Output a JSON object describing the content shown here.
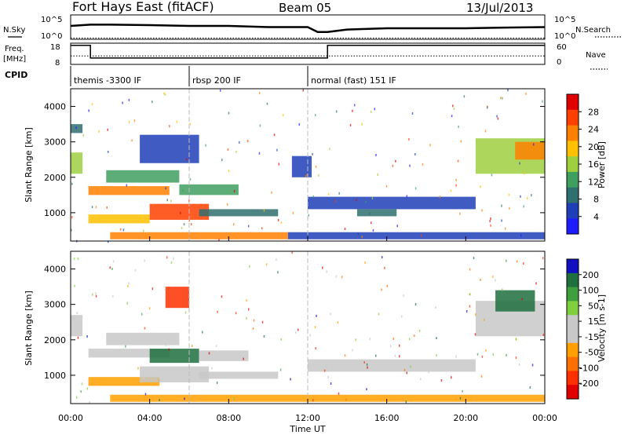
{
  "header": {
    "station": "Fort Hays East (fitACF)",
    "beam": "Beam 05",
    "date": "13/Jul/2013"
  },
  "panels": {
    "nsky_label": "N.Sky",
    "nsky_ticks": [
      "10^5",
      "10^0"
    ],
    "nsearch_label": "N.Search",
    "nsearch_ticks": [
      "10^5",
      "10^0"
    ],
    "freq_label": [
      "Freq.",
      "[MHz]"
    ],
    "freq_ticks": [
      "18",
      "8"
    ],
    "nave_label": "Nave",
    "nave_ticks": [
      "60",
      "0"
    ],
    "cpid_label": "CPID",
    "cpid_segments": [
      {
        "label": "themis -3300 IF",
        "start": 0.0,
        "end": 6.0
      },
      {
        "label": "rbsp 200 IF",
        "start": 6.0,
        "end": 12.0
      },
      {
        "label": "normal (fast) 151 IF",
        "start": 12.0,
        "end": 24.0
      }
    ]
  },
  "colors": {
    "power_scale": [
      "#1c1cff",
      "#1f3fb8",
      "#2f6f6f",
      "#3f9f5f",
      "#9fcf3f",
      "#ffc000",
      "#ff8000",
      "#ff4000",
      "#e00000"
    ],
    "velocity_scale": [
      "#1010c0",
      "#1f6f3f",
      "#3f9f3f",
      "#7fcf3f",
      "#c8c8c8",
      "#c8c8c8",
      "#ffa000",
      "#ff7000",
      "#ff3000",
      "#e00000"
    ]
  },
  "chart_data": [
    {
      "type": "heatmap",
      "title": "Power",
      "xlabel": "",
      "ylabel": "Slant Range [km]",
      "xlim": [
        0,
        24
      ],
      "ylim": [
        200,
        4500
      ],
      "yticks": [
        "1000",
        "2000",
        "3000",
        "4000"
      ],
      "colorbar": {
        "label": "Power [dB]",
        "ticks": [
          "4",
          "8",
          "12",
          "16",
          "20",
          "24",
          "28"
        ],
        "range": [
          0,
          30
        ]
      },
      "regions": [
        {
          "x": [
            0.0,
            0.6
          ],
          "y": [
            2100,
            2700
          ],
          "value": 14
        },
        {
          "x": [
            0.0,
            0.6
          ],
          "y": [
            3250,
            3500
          ],
          "value": 7
        },
        {
          "x": [
            0.9,
            5.0
          ],
          "y": [
            1500,
            1750
          ],
          "value": 22
        },
        {
          "x": [
            1.8,
            5.5
          ],
          "y": [
            1850,
            2200
          ],
          "value": 13
        },
        {
          "x": [
            5.5,
            8.5
          ],
          "y": [
            1500,
            1800
          ],
          "value": 12
        },
        {
          "x": [
            0.9,
            4.0
          ],
          "y": [
            700,
            950
          ],
          "value": 18
        },
        {
          "x": [
            4.0,
            7.0
          ],
          "y": [
            800,
            1250
          ],
          "value": 24
        },
        {
          "x": [
            6.5,
            10.5
          ],
          "y": [
            900,
            1100
          ],
          "value": 8
        },
        {
          "x": [
            3.5,
            6.5
          ],
          "y": [
            2400,
            3200
          ],
          "value": 6
        },
        {
          "x": [
            11.2,
            12.2
          ],
          "y": [
            2000,
            2600
          ],
          "value": 5
        },
        {
          "x": [
            12.0,
            20.5
          ],
          "y": [
            1100,
            1450
          ],
          "value": 5
        },
        {
          "x": [
            14.5,
            16.5
          ],
          "y": [
            900,
            1100
          ],
          "value": 9
        },
        {
          "x": [
            20.5,
            24.0
          ],
          "y": [
            2100,
            3100
          ],
          "value": 14
        },
        {
          "x": [
            22.5,
            24.0
          ],
          "y": [
            2500,
            3000
          ],
          "value": 22
        },
        {
          "x": [
            2.0,
            11.0
          ],
          "y": [
            250,
            450
          ],
          "value": 20
        },
        {
          "x": [
            11.0,
            24.0
          ],
          "y": [
            250,
            450
          ],
          "value": 6
        }
      ]
    },
    {
      "type": "heatmap",
      "title": "Velocity",
      "xlabel": "Time UT",
      "ylabel": "Slant Range [km]",
      "xlim": [
        0,
        24
      ],
      "ylim": [
        200,
        4500
      ],
      "xticks": [
        "00:00",
        "04:00",
        "08:00",
        "12:00",
        "16:00",
        "20:00",
        "00:00"
      ],
      "yticks": [
        "1000",
        "2000",
        "3000",
        "4000"
      ],
      "colorbar": {
        "label": "Velocity [m s-1]",
        "ticks": [
          "200",
          "100",
          "50",
          "15",
          "-15",
          "-50",
          "-100",
          "-200"
        ],
        "range": [
          -250,
          250
        ]
      },
      "regions": [
        {
          "x": [
            0.0,
            0.6
          ],
          "y": [
            2100,
            2700
          ],
          "value": 0
        },
        {
          "x": [
            0.9,
            5.0
          ],
          "y": [
            1500,
            1750
          ],
          "value": 0
        },
        {
          "x": [
            1.8,
            5.5
          ],
          "y": [
            1850,
            2200
          ],
          "value": 0
        },
        {
          "x": [
            4.0,
            6.5
          ],
          "y": [
            1350,
            1750
          ],
          "value": 180
        },
        {
          "x": [
            6.5,
            9.0
          ],
          "y": [
            1400,
            1700
          ],
          "value": 40
        },
        {
          "x": [
            0.9,
            4.5
          ],
          "y": [
            700,
            950
          ],
          "value": -50
        },
        {
          "x": [
            3.5,
            7.0
          ],
          "y": [
            800,
            1250
          ],
          "value": 0
        },
        {
          "x": [
            6.5,
            10.5
          ],
          "y": [
            900,
            1100
          ],
          "value": 0
        },
        {
          "x": [
            4.8,
            6.0
          ],
          "y": [
            2900,
            3500
          ],
          "value": -150
        },
        {
          "x": [
            12.0,
            20.5
          ],
          "y": [
            1100,
            1450
          ],
          "value": 0
        },
        {
          "x": [
            20.5,
            24.0
          ],
          "y": [
            2100,
            3100
          ],
          "value": 0
        },
        {
          "x": [
            21.5,
            23.5
          ],
          "y": [
            2800,
            3400
          ],
          "value": 180
        },
        {
          "x": [
            2.0,
            24.0
          ],
          "y": [
            250,
            450
          ],
          "value": -60
        }
      ]
    },
    {
      "type": "line",
      "title": "N.Sky / N.Search",
      "xlim": [
        0,
        24
      ],
      "series": [
        {
          "name": "N.Sky",
          "x": [
            0,
            1,
            2,
            4,
            6,
            8,
            10,
            12,
            12.5,
            13,
            14,
            16,
            18,
            20,
            22,
            24
          ],
          "values": [
            0.55,
            0.6,
            0.6,
            0.58,
            0.55,
            0.55,
            0.5,
            0.5,
            0.3,
            0.3,
            0.4,
            0.45,
            0.45,
            0.45,
            0.48,
            0.5
          ]
        },
        {
          "name": "N.Search",
          "x": [
            0,
            24
          ],
          "values": [
            0.05,
            0.05
          ]
        }
      ]
    },
    {
      "type": "line",
      "title": "Freq. / Nave",
      "xlim": [
        0,
        24
      ],
      "ylim": [
        8,
        18
      ],
      "series": [
        {
          "name": "Freq.",
          "x": [
            0,
            1,
            1,
            13,
            13,
            24
          ],
          "values": [
            17,
            17,
            11,
            11,
            17,
            17
          ]
        },
        {
          "name": "Nave",
          "x": [
            0,
            24
          ],
          "values": [
            12,
            12
          ]
        }
      ]
    }
  ]
}
